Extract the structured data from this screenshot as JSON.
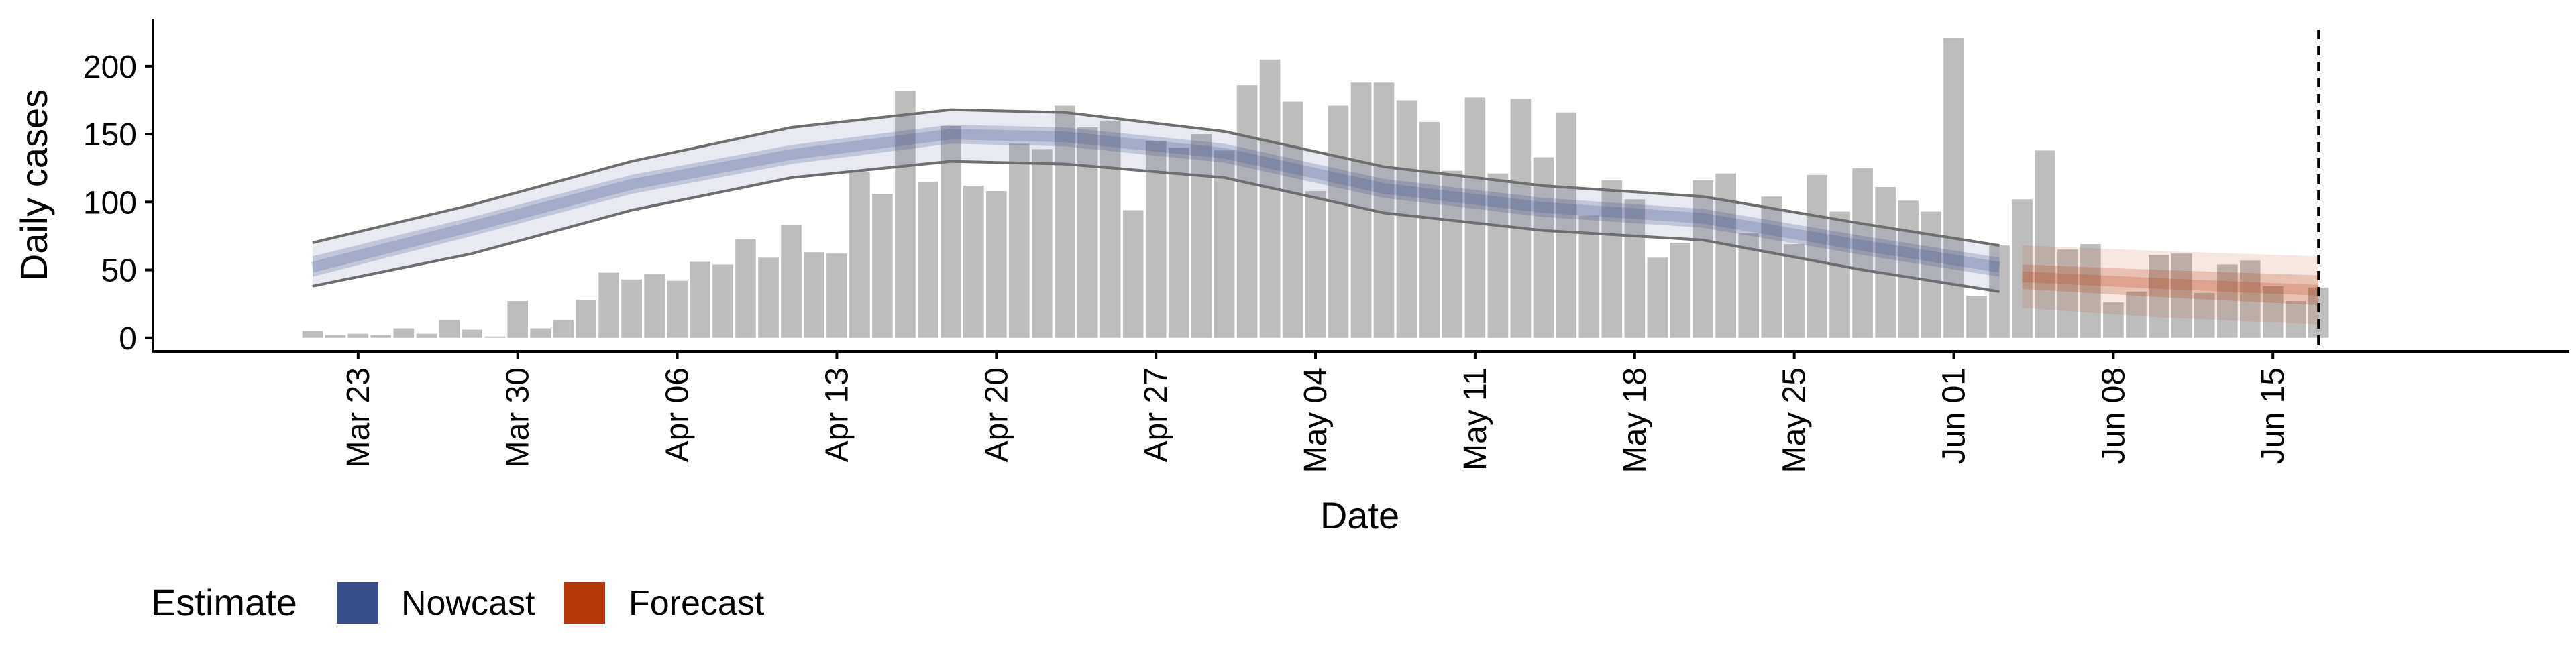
{
  "chart_data": {
    "type": "bar",
    "xlabel": "Date",
    "ylabel": "Daily cases",
    "ylim": [
      -10,
      235
    ],
    "yticks": [
      0,
      50,
      100,
      150,
      200
    ],
    "xlim": [
      "2020-03-14",
      "2020-06-28"
    ],
    "xticks": [
      {
        "date": "2020-03-23",
        "label": "Mar 23"
      },
      {
        "date": "2020-03-30",
        "label": "Mar 30"
      },
      {
        "date": "2020-04-06",
        "label": "Apr 06"
      },
      {
        "date": "2020-04-13",
        "label": "Apr 13"
      },
      {
        "date": "2020-04-20",
        "label": "Apr 20"
      },
      {
        "date": "2020-04-27",
        "label": "Apr 27"
      },
      {
        "date": "2020-05-04",
        "label": "May 04"
      },
      {
        "date": "2020-05-11",
        "label": "May 11"
      },
      {
        "date": "2020-05-18",
        "label": "May 18"
      },
      {
        "date": "2020-05-25",
        "label": "May 25"
      },
      {
        "date": "2020-06-01",
        "label": "Jun 01"
      },
      {
        "date": "2020-06-08",
        "label": "Jun 08"
      },
      {
        "date": "2020-06-15",
        "label": "Jun 15"
      }
    ],
    "grid": false,
    "legend": {
      "position": "bottom-left",
      "title": "Estimate",
      "entries": [
        {
          "name": "Nowcast",
          "color": "#3a4f8a"
        },
        {
          "name": "Forecast",
          "color": "#b5390c"
        }
      ]
    },
    "colors": {
      "bars": "#bdbdbd",
      "nowcast": "#3a4f8a",
      "forecast": "#b5390c",
      "bound_lines": "#6e6e6e",
      "reference_line": "#000000"
    },
    "reference_line_date": "2020-06-17",
    "bars": {
      "start_date": "2020-03-21",
      "values": [
        5,
        2,
        3,
        2,
        7,
        3,
        13,
        6,
        1,
        27,
        7,
        13,
        28,
        48,
        43,
        47,
        42,
        56,
        54,
        73,
        59,
        83,
        63,
        62,
        122,
        106,
        182,
        115,
        156,
        112,
        108,
        143,
        139,
        171,
        155,
        160,
        94,
        145,
        140,
        150,
        138,
        186,
        205,
        174,
        108,
        171,
        188,
        188,
        175,
        159,
        123,
        177,
        121,
        176,
        133,
        166,
        90,
        116,
        102,
        59,
        70,
        116,
        121,
        77,
        104,
        69,
        120,
        93,
        125,
        111,
        101,
        93,
        221,
        31,
        68,
        102,
        138,
        65,
        69,
        26,
        34,
        61,
        62,
        33,
        54,
        57,
        38,
        27,
        37
      ]
    },
    "series": [
      {
        "name": "Nowcast",
        "start_date": "2020-03-21",
        "end_date": "2020-06-03",
        "points": [
          {
            "date": "2020-03-21",
            "median": 52,
            "inner_lower": 45,
            "inner_upper": 60,
            "lower": 38,
            "upper": 70
          },
          {
            "date": "2020-03-28",
            "median": 82,
            "inner_lower": 75,
            "inner_upper": 89,
            "lower": 62,
            "upper": 98
          },
          {
            "date": "2020-04-04",
            "median": 113,
            "inner_lower": 106,
            "inner_upper": 120,
            "lower": 94,
            "upper": 130
          },
          {
            "date": "2020-04-11",
            "median": 135,
            "inner_lower": 128,
            "inner_upper": 142,
            "lower": 118,
            "upper": 155
          },
          {
            "date": "2020-04-18",
            "median": 150,
            "inner_lower": 143,
            "inner_upper": 157,
            "lower": 130,
            "upper": 168
          },
          {
            "date": "2020-04-23",
            "median": 148,
            "inner_lower": 141,
            "inner_upper": 155,
            "lower": 128,
            "upper": 166
          },
          {
            "date": "2020-04-30",
            "median": 136,
            "inner_lower": 129,
            "inner_upper": 143,
            "lower": 118,
            "upper": 152
          },
          {
            "date": "2020-05-07",
            "median": 110,
            "inner_lower": 103,
            "inner_upper": 117,
            "lower": 92,
            "upper": 126
          },
          {
            "date": "2020-05-14",
            "median": 96,
            "inner_lower": 89,
            "inner_upper": 103,
            "lower": 79,
            "upper": 112
          },
          {
            "date": "2020-05-21",
            "median": 88,
            "inner_lower": 81,
            "inner_upper": 95,
            "lower": 72,
            "upper": 104
          },
          {
            "date": "2020-05-28",
            "median": 68,
            "inner_lower": 61,
            "inner_upper": 75,
            "lower": 50,
            "upper": 84
          },
          {
            "date": "2020-06-03",
            "median": 52,
            "inner_lower": 45,
            "inner_upper": 59,
            "lower": 34,
            "upper": 68
          }
        ]
      },
      {
        "name": "Forecast",
        "start_date": "2020-06-04",
        "end_date": "2020-06-17",
        "points": [
          {
            "date": "2020-06-04",
            "median": 45,
            "inner_lower": 36,
            "inner_upper": 54,
            "lower": 22,
            "upper": 68
          },
          {
            "date": "2020-06-10",
            "median": 40,
            "inner_lower": 30,
            "inner_upper": 50,
            "lower": 15,
            "upper": 64
          },
          {
            "date": "2020-06-17",
            "median": 35,
            "inner_lower": 24,
            "inner_upper": 46,
            "lower": 10,
            "upper": 60
          }
        ]
      }
    ]
  }
}
